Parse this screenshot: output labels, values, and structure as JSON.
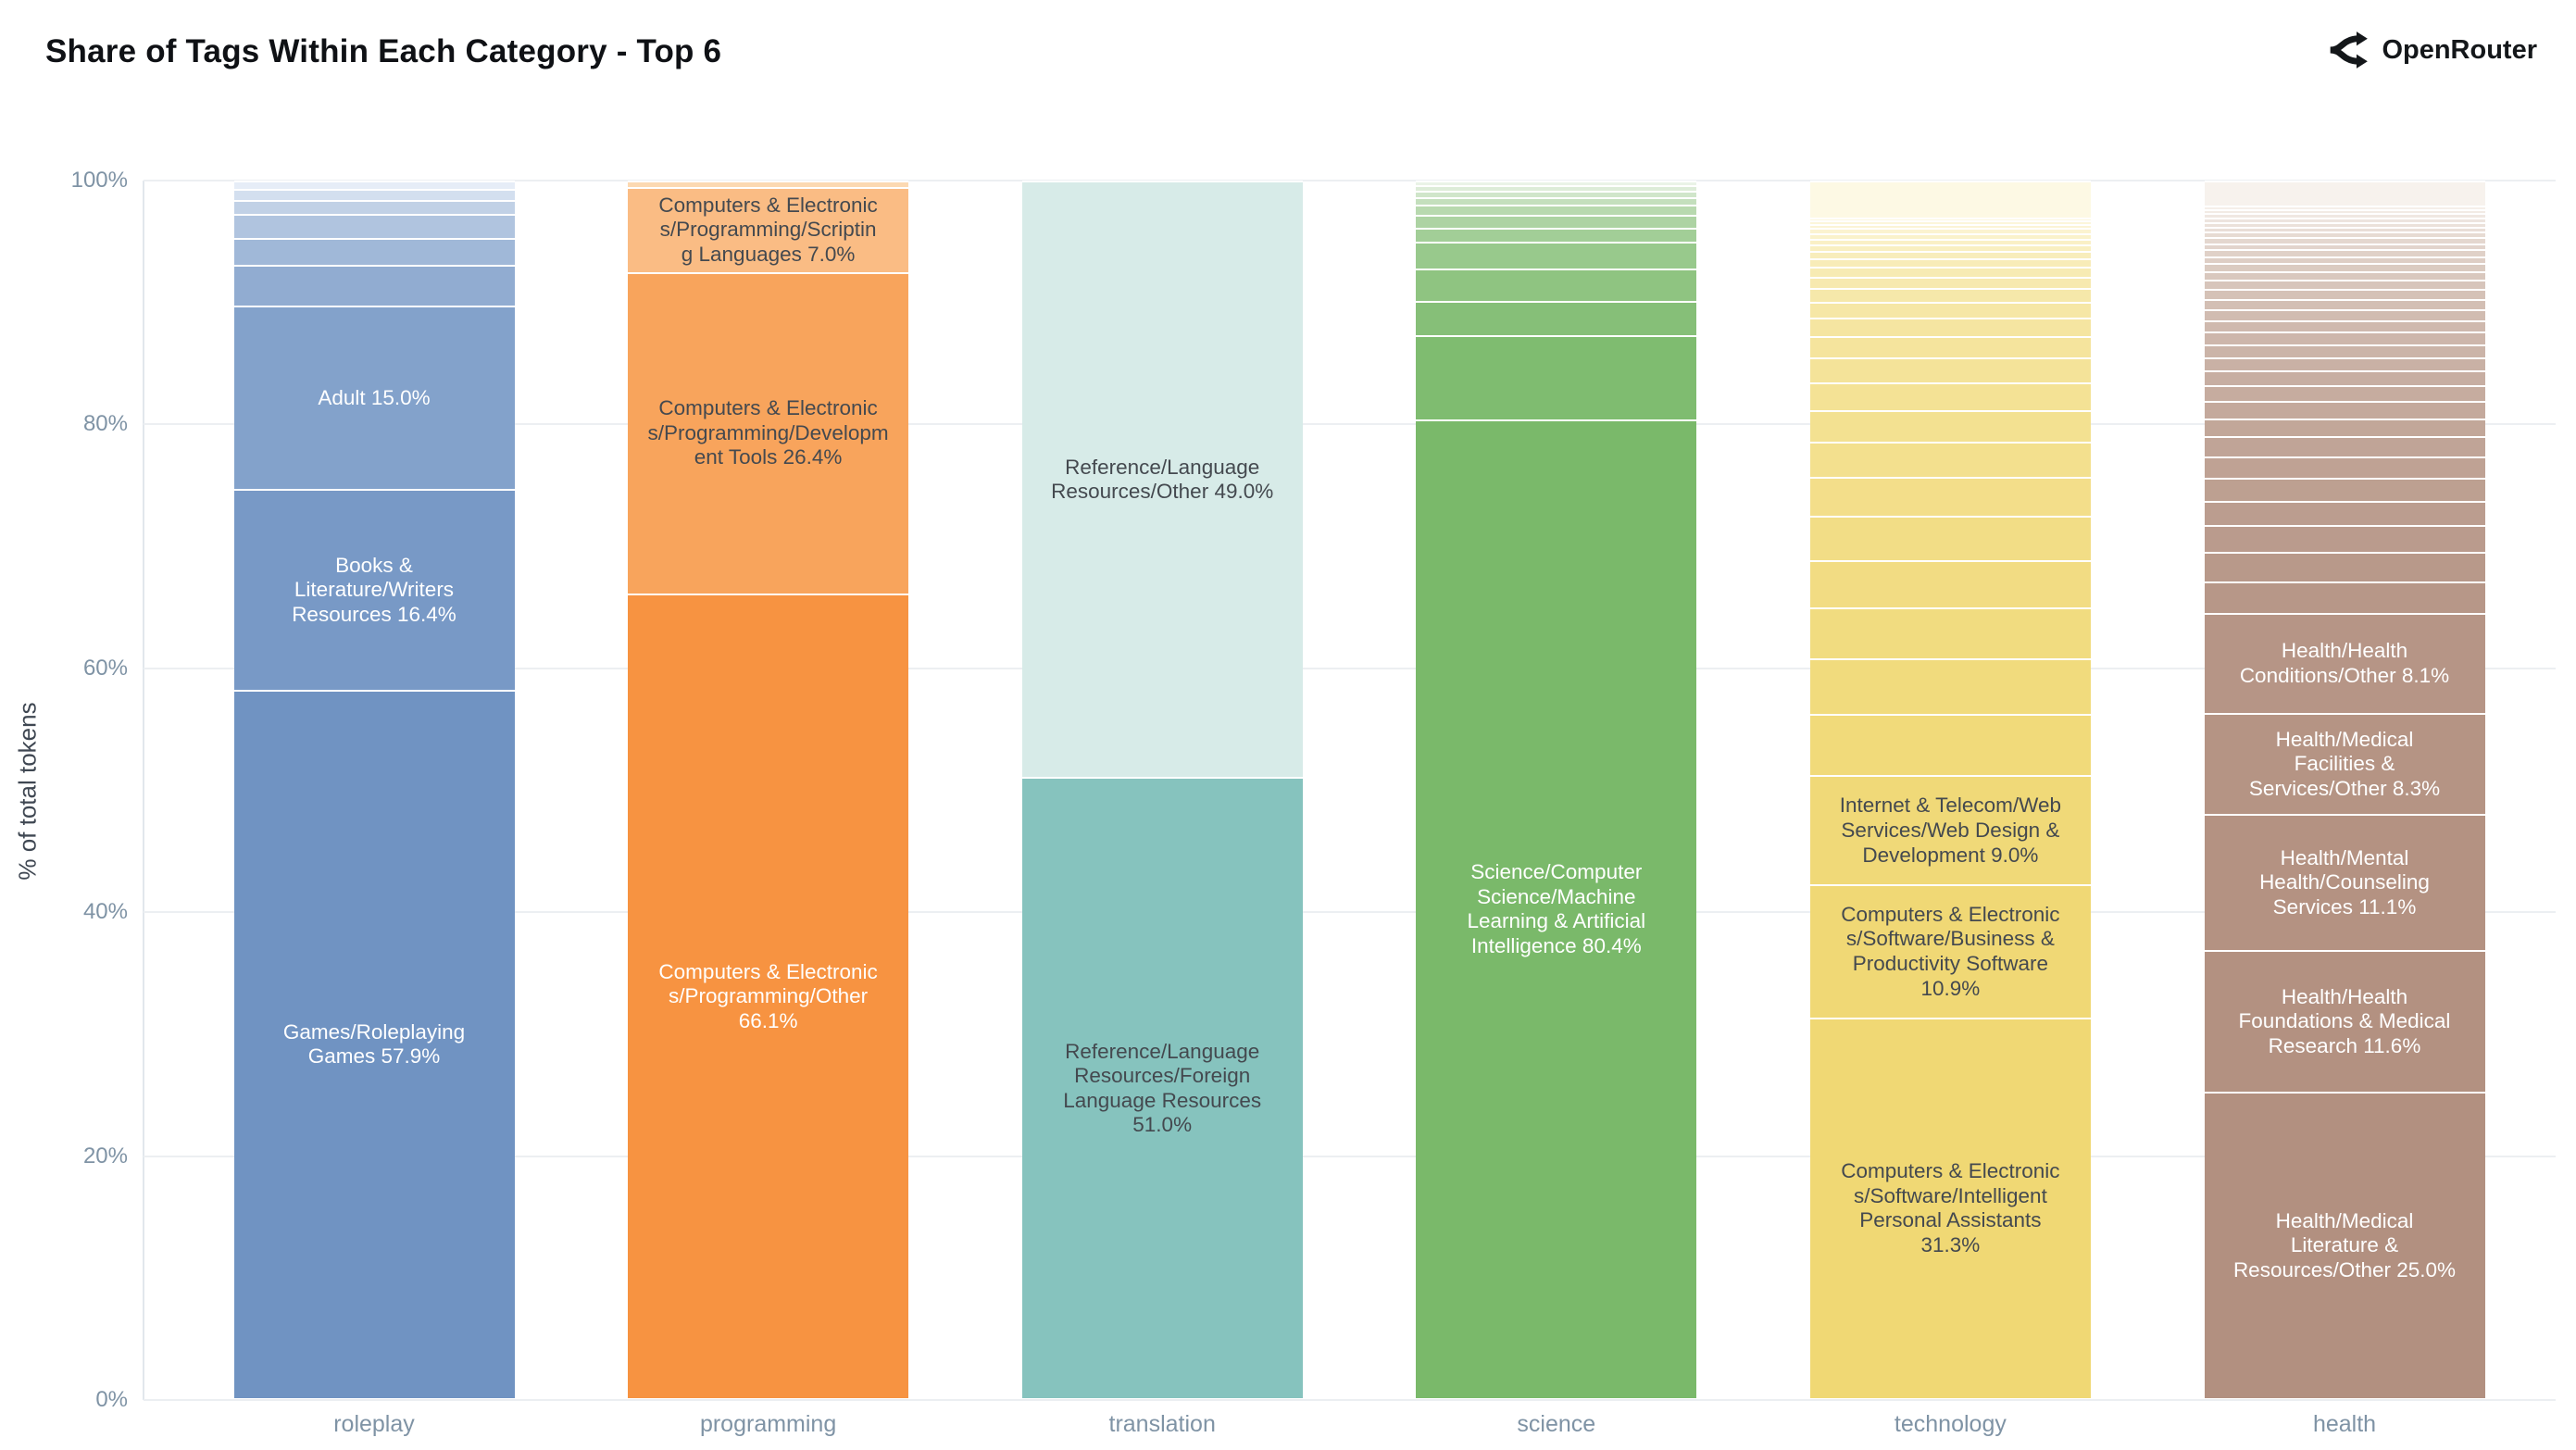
{
  "header": {
    "title": "Share of Tags Within Each Category - Top 6",
    "brand": "OpenRouter"
  },
  "y_axis": {
    "title": "% of total tokens",
    "ticks": [
      {
        "label": "0%",
        "value": 0
      },
      {
        "label": "20%",
        "value": 20
      },
      {
        "label": "40%",
        "value": 40
      },
      {
        "label": "60%",
        "value": 60
      },
      {
        "label": "80%",
        "value": 80
      },
      {
        "label": "100%",
        "value": 100
      }
    ]
  },
  "colors": {
    "background": "#ffffff",
    "title_text": "#0f1115",
    "grid": "#eceff2",
    "axis_line": "#e2e7ec",
    "tick_text": "#7f93a5",
    "category_text": "#7f93a5",
    "y_title_text": "#3f4752",
    "label_dark": "#44494f",
    "label_light": "#ffffff",
    "separator": "#ffffff"
  },
  "chart_data": {
    "type": "bar",
    "stacked": true,
    "normalized": "percent",
    "title": "Share of Tags Within Each Category - Top 6",
    "ylabel": "% of total tokens",
    "ylim": [
      0,
      100
    ],
    "grid": "horizontal, every 20%",
    "legend": "none",
    "categories": [
      "roleplay",
      "programming",
      "translation",
      "science",
      "technology",
      "health"
    ],
    "bars": [
      {
        "category": "roleplay",
        "base_color": "#7093c2",
        "light_color": "#e6edf7",
        "segments": [
          {
            "tag": "Games/Roleplaying Games",
            "pct": 57.9,
            "label_lines": [
              "Games/Roleplaying",
              "Games 57.9%"
            ],
            "label_style": "light"
          },
          {
            "tag": "Books & Literature/Writers Resources",
            "pct": 16.4,
            "label_lines": [
              "Books &",
              "Literature/Writers",
              "Resources 16.4%"
            ],
            "label_style": "light"
          },
          {
            "tag": "Adult",
            "pct": 15.0,
            "label_lines": [
              "Adult 15.0%"
            ],
            "label_style": "light"
          },
          {
            "pct": 3.3
          },
          {
            "pct": 2.2
          },
          {
            "pct": 2.0
          },
          {
            "pct": 1.1
          },
          {
            "pct": 0.9
          },
          {
            "pct": 0.7
          }
        ]
      },
      {
        "category": "programming",
        "base_color": "#f79341",
        "light_color": "#fcd9b2",
        "segments": [
          {
            "tag": "Computers & Electronics/Programming/Other",
            "pct": 66.1,
            "label_lines": [
              "Computers & Electronic",
              "s/Programming/Other",
              "66.1%"
            ],
            "label_style": "light"
          },
          {
            "tag": "Computers & Electronics/Programming/Development Tools",
            "pct": 26.4,
            "label_lines": [
              "Computers & Electronic",
              "s/Programming/Developm",
              "ent Tools 26.4%"
            ],
            "label_style": "dark"
          },
          {
            "tag": "Computers & Electronics/Programming/Scripting Languages",
            "pct": 7.0,
            "label_lines": [
              "Computers & Electronic",
              "s/Programming/Scriptin",
              "g Languages 7.0%"
            ],
            "label_style": "dark"
          },
          {
            "pct": 0.5
          }
        ]
      },
      {
        "category": "translation",
        "base_color": "#86c3be",
        "light_color": "#d7ebe8",
        "segments": [
          {
            "tag": "Reference/Language Resources/Foreign Language Resources",
            "pct": 51.0,
            "label_lines": [
              "Reference/Language",
              "Resources/Foreign",
              "Language Resources",
              "51.0%"
            ],
            "label_style": "dark"
          },
          {
            "tag": "Reference/Language Resources/Other",
            "pct": 49.0,
            "label_lines": [
              "Reference/Language",
              "Resources/Other 49.0%"
            ],
            "label_style": "dark"
          }
        ]
      },
      {
        "category": "science",
        "base_color": "#7ab96a",
        "light_color": "#eaf3e7",
        "segments": [
          {
            "tag": "Science/Computer Science/Machine Learning & Artificial Intelligence",
            "pct": 80.4,
            "label_lines": [
              "Science/Computer",
              "Science/Machine",
              "Learning & Artificial",
              "Intelligence 80.4%"
            ],
            "label_style": "light"
          },
          {
            "pct": 6.9
          },
          {
            "pct": 2.8
          },
          {
            "pct": 2.7
          },
          {
            "pct": 2.2
          },
          {
            "pct": 1.15
          },
          {
            "pct": 1.05
          },
          {
            "pct": 0.85
          },
          {
            "pct": 0.6
          },
          {
            "pct": 0.55
          },
          {
            "pct": 0.45
          },
          {
            "pct": 0.35
          }
        ]
      },
      {
        "category": "technology",
        "base_color": "#f0d874",
        "light_color": "#fdf9e4",
        "segments": [
          {
            "tag": "Computers & Electronics/Software/Intelligent Personal Assistants",
            "pct": 31.3,
            "label_lines": [
              "Computers & Electronic",
              "s/Software/Intelligent",
              "Personal Assistants",
              "31.3%"
            ],
            "label_style": "dark"
          },
          {
            "tag": "Computers & Electronics/Software/Business & Productivity Software",
            "pct": 10.9,
            "label_lines": [
              "Computers & Electronic",
              "s/Software/Business &",
              "Productivity Software",
              "10.9%"
            ],
            "label_style": "dark"
          },
          {
            "tag": "Internet & Telecom/Web Services/Web Design & Development",
            "pct": 9.0,
            "label_lines": [
              "Internet & Telecom/Web",
              "Services/Web Design &",
              "Development 9.0%"
            ],
            "label_style": "dark"
          },
          {
            "pct": 5.0
          },
          {
            "pct": 4.6
          },
          {
            "pct": 4.2
          },
          {
            "pct": 3.9
          },
          {
            "pct": 3.6
          },
          {
            "pct": 3.2
          },
          {
            "pct": 2.9
          },
          {
            "pct": 2.6
          },
          {
            "pct": 2.3
          },
          {
            "pct": 2.0
          },
          {
            "pct": 1.8
          },
          {
            "pct": 1.5
          },
          {
            "pct": 1.3
          },
          {
            "pct": 1.1
          },
          {
            "pct": 0.95
          },
          {
            "pct": 0.8
          },
          {
            "pct": 0.7
          },
          {
            "pct": 0.6
          },
          {
            "pct": 0.55
          },
          {
            "pct": 0.5
          },
          {
            "pct": 0.45
          },
          {
            "pct": 0.4
          },
          {
            "pct": 0.35
          },
          {
            "pct": 0.3
          },
          {
            "pct": 0.25
          },
          {
            "pct": 3.0
          }
        ]
      },
      {
        "category": "health",
        "base_color": "#b29080",
        "light_color": "#f7f2ed",
        "segments": [
          {
            "tag": "Health/Medical Literature & Resources/Other",
            "pct": 25.0,
            "label_lines": [
              "Health/Medical",
              "Literature &",
              "Resources/Other 25.0%"
            ],
            "label_style": "light"
          },
          {
            "tag": "Health/Health Foundations & Medical Research",
            "pct": 11.6,
            "label_lines": [
              "Health/Health",
              "Foundations & Medical",
              "Research 11.6%"
            ],
            "label_style": "light"
          },
          {
            "tag": "Health/Mental Health/Counseling Services",
            "pct": 11.1,
            "label_lines": [
              "Health/Mental",
              "Health/Counseling",
              "Services 11.1%"
            ],
            "label_style": "light"
          },
          {
            "tag": "Health/Medical Facilities & Services/Other",
            "pct": 8.3,
            "label_lines": [
              "Health/Medical",
              "Facilities &",
              "Services/Other 8.3%"
            ],
            "label_style": "light"
          },
          {
            "tag": "Health/Health Conditions/Other",
            "pct": 8.1,
            "label_lines": [
              "Health/Health",
              "Conditions/Other 8.1%"
            ],
            "label_style": "light"
          },
          {
            "pct": 2.6
          },
          {
            "pct": 2.4
          },
          {
            "pct": 2.2
          },
          {
            "pct": 2.0
          },
          {
            "pct": 1.9
          },
          {
            "pct": 1.75
          },
          {
            "pct": 1.6
          },
          {
            "pct": 1.5
          },
          {
            "pct": 1.4
          },
          {
            "pct": 1.3
          },
          {
            "pct": 1.2
          },
          {
            "pct": 1.1
          },
          {
            "pct": 1.05
          },
          {
            "pct": 1.0
          },
          {
            "pct": 0.95
          },
          {
            "pct": 0.9
          },
          {
            "pct": 0.85
          },
          {
            "pct": 0.8
          },
          {
            "pct": 0.75
          },
          {
            "pct": 0.7
          },
          {
            "pct": 0.65
          },
          {
            "pct": 0.6
          },
          {
            "pct": 0.55
          },
          {
            "pct": 0.5
          },
          {
            "pct": 0.48
          },
          {
            "pct": 0.45
          },
          {
            "pct": 0.42
          },
          {
            "pct": 0.4
          },
          {
            "pct": 0.38
          },
          {
            "pct": 0.35
          },
          {
            "pct": 0.32
          },
          {
            "pct": 0.3
          },
          {
            "pct": 2.0
          }
        ]
      }
    ]
  }
}
